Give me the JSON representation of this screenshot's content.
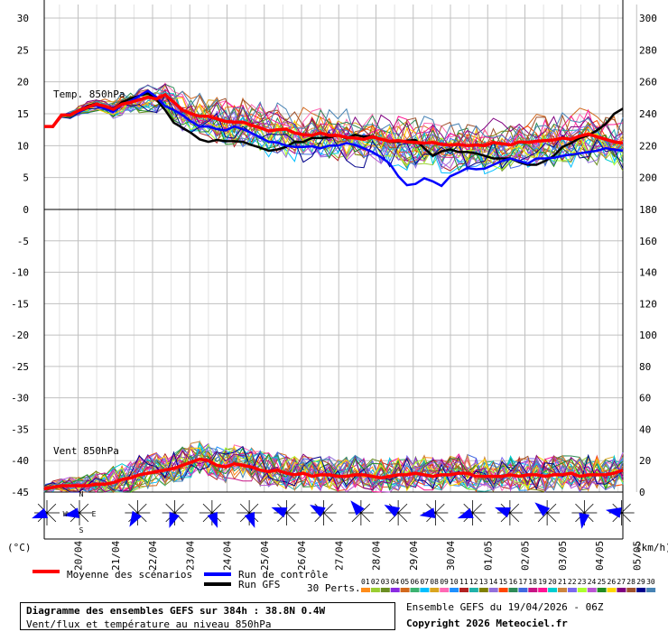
{
  "chart_data": {
    "type": "line",
    "dates": [
      "20/04",
      "21/04",
      "22/04",
      "23/04",
      "24/04",
      "25/04",
      "26/04",
      "27/04",
      "28/04",
      "29/04",
      "30/04",
      "01/05",
      "02/05",
      "03/05",
      "04/05",
      "05/05"
    ],
    "temperature_panel": {
      "label": "Temp. 850hPa",
      "y_left_ticks": [
        "30",
        "25",
        "20",
        "15",
        "10",
        "5",
        "0"
      ],
      "y_right_ticks": [
        "300",
        "280",
        "260",
        "240",
        "220",
        "200",
        "180"
      ],
      "ylim_c": [
        0,
        30
      ],
      "mean_c": [
        13,
        13,
        14.8,
        14.8,
        15.5,
        16,
        16.5,
        16.2,
        15.7,
        16.5,
        16.8,
        17.2,
        17.6,
        17.3,
        18,
        16.8,
        15.6,
        15,
        14.6,
        14.6,
        14.2,
        13.8,
        13.7,
        13.7,
        13.2,
        12.8,
        12.3,
        12.5,
        12.6,
        12,
        11.7,
        11.6,
        12,
        11.6,
        11.6,
        11.3,
        11.2,
        11,
        11.4,
        11,
        10.7,
        10.8,
        10.6,
        10.5,
        10.4,
        10.5,
        10.2,
        10.1,
        10.2,
        10,
        10.1,
        10,
        10.5,
        10.3,
        10.1,
        10.6,
        10.5,
        10.7,
        10.8,
        10.9,
        11.2,
        11,
        11.5,
        11.8,
        11.4,
        11,
        10.6,
        10.4
      ],
      "control_c": [
        13,
        13,
        14.8,
        15,
        15.2,
        16,
        16.3,
        15.8,
        15.3,
        16.4,
        17,
        17.8,
        18.6,
        17.6,
        16.2,
        15.6,
        14.8,
        13.8,
        13,
        13,
        12.6,
        12.4,
        13,
        12.6,
        12,
        11.3,
        10.6,
        10.5,
        10,
        9.8,
        9.8,
        9.9,
        9.6,
        10,
        10,
        10.4,
        10.1,
        9.6,
        9,
        8.2,
        7.2,
        5.2,
        3.8,
        4,
        4.9,
        4.4,
        3.7,
        5.2,
        5.8,
        6.5,
        6.3,
        6.4,
        7,
        7.6,
        8,
        7.6,
        7.2,
        8,
        8,
        8.1,
        8.4,
        8.6,
        8.8,
        9,
        9.2,
        9.6,
        9.4,
        9.2
      ],
      "gfs_c": [
        13,
        13,
        14.8,
        14.7,
        15.5,
        16.2,
        16.6,
        16,
        15.5,
        16.8,
        17.4,
        17.8,
        18.2,
        17.2,
        15.6,
        13.6,
        12.8,
        12,
        11,
        10.6,
        10.9,
        10.7,
        10.7,
        10.6,
        10.1,
        9.7,
        9.2,
        9.4,
        9.8,
        10.6,
        10.6,
        11.2,
        11.2,
        11.3,
        11.6,
        11.2,
        11.7,
        11.4,
        11.5,
        11,
        10.6,
        10.6,
        10.8,
        10.9,
        9.6,
        8.4,
        9.1,
        9.4,
        9,
        9,
        8.8,
        8.4,
        8,
        8,
        8,
        7.4,
        7,
        7,
        7.6,
        8.4,
        9.8,
        10.4,
        11.2,
        11.6,
        12.4,
        13.4,
        15,
        15.8
      ]
    },
    "wind_panel": {
      "label": "Vent 850hPa",
      "y_left_ticks": [
        "-5",
        "-10",
        "-15",
        "-20",
        "-25",
        "-30",
        "-35",
        "-40",
        "-45"
      ],
      "y_right_ticks": [
        "160",
        "140",
        "120",
        "100",
        "80",
        "60",
        "40",
        "20",
        "0"
      ],
      "ylim_kmh": [
        0,
        180
      ],
      "mean_kmh": [
        2,
        3,
        4,
        4,
        4,
        4,
        5,
        5,
        6,
        8,
        9,
        11,
        12,
        13,
        14,
        15,
        17,
        19,
        21,
        20,
        17,
        16,
        18,
        17,
        16,
        14,
        13,
        14,
        12,
        11,
        12,
        10,
        11,
        11,
        10,
        10,
        11,
        11,
        10,
        9,
        10,
        11,
        11,
        12,
        11,
        10,
        11,
        11,
        12,
        12,
        10,
        10,
        10,
        10,
        11,
        10,
        11,
        11,
        10,
        11,
        11,
        12,
        10,
        11,
        11,
        11,
        12,
        14
      ]
    },
    "wind_rose_directions_deg": [
      250,
      260,
      210,
      200,
      160,
      160,
      290,
      300,
      320,
      300,
      260,
      250,
      290,
      310,
      190,
      280
    ],
    "wind_rose_labels": {
      "north": "N",
      "west": "W",
      "east": "E",
      "south": "S"
    },
    "bottom_labels": {
      "left_unit": "(°C)",
      "right_unit": "(km/h)"
    },
    "legend": {
      "mean": "Moyenne des scénarios",
      "control": "Run de contrôle",
      "gfs": "Run GFS",
      "perts": "30 Perts.",
      "pert_numbers": [
        "01",
        "02",
        "03",
        "04",
        "05",
        "06",
        "07",
        "08",
        "09",
        "10",
        "11",
        "12",
        "13",
        "14",
        "15",
        "16",
        "17",
        "18",
        "19",
        "20",
        "21",
        "22",
        "23",
        "24",
        "25",
        "26",
        "27",
        "28",
        "29",
        "30"
      ],
      "pert_colors": [
        "#ff8c1a",
        "#9acd32",
        "#6b8e23",
        "#8a2be2",
        "#d2691e",
        "#3cb371",
        "#00bfff",
        "#daa520",
        "#ff69b4",
        "#1e90ff",
        "#b22222",
        "#20b2aa",
        "#808000",
        "#9370db",
        "#ff4500",
        "#2e8b57",
        "#4169e1",
        "#c71585",
        "#ff1493",
        "#00ced1",
        "#cd853f",
        "#7b68ee",
        "#adff2f",
        "#ba55d3",
        "#228b22",
        "#ffd700",
        "#800080",
        "#a0522d",
        "#00008b",
        "#4682b4"
      ],
      "mean_color": "#ff0000",
      "control_color": "#0000ff",
      "gfs_color": "#000000"
    }
  },
  "footer": {
    "title": "Diagramme des ensembles GEFS sur 384h : 38.8N 0.4W",
    "subtitle": "Vent/flux et température au niveau 850hPa",
    "run": "Ensemble GEFS du 19/04/2026 - 06Z",
    "copyright": "Copyright 2026 Meteociel.fr"
  }
}
